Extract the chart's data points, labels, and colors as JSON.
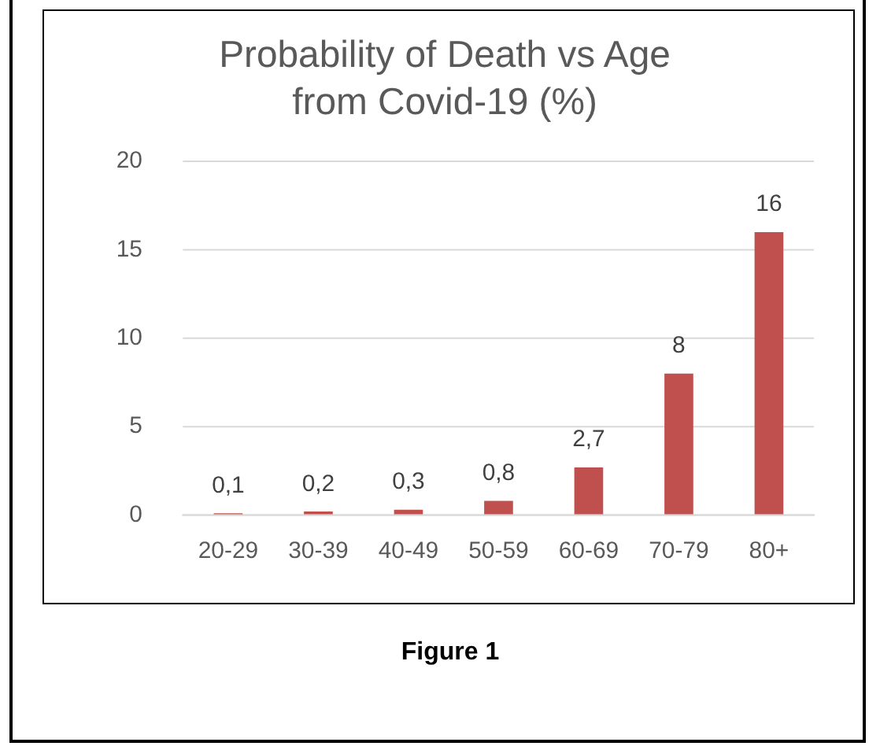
{
  "chart_data": {
    "type": "bar",
    "title": "Probability of Death vs Age\nfrom Covid-19 (%)",
    "categories": [
      "20-29",
      "30-39",
      "40-49",
      "50-59",
      "60-69",
      "70-79",
      "80+"
    ],
    "values": [
      0.1,
      0.2,
      0.3,
      0.8,
      2.7,
      8,
      16
    ],
    "value_labels": [
      "0,1",
      "0,2",
      "0,3",
      "0,8",
      "2,7",
      "8",
      "16"
    ],
    "color": "#c0504d",
    "ylim": [
      0,
      20
    ],
    "yticks": [
      0,
      5,
      10,
      15,
      20
    ],
    "grid": "y",
    "legend": false,
    "annotations": [
      "Figure 1"
    ]
  }
}
